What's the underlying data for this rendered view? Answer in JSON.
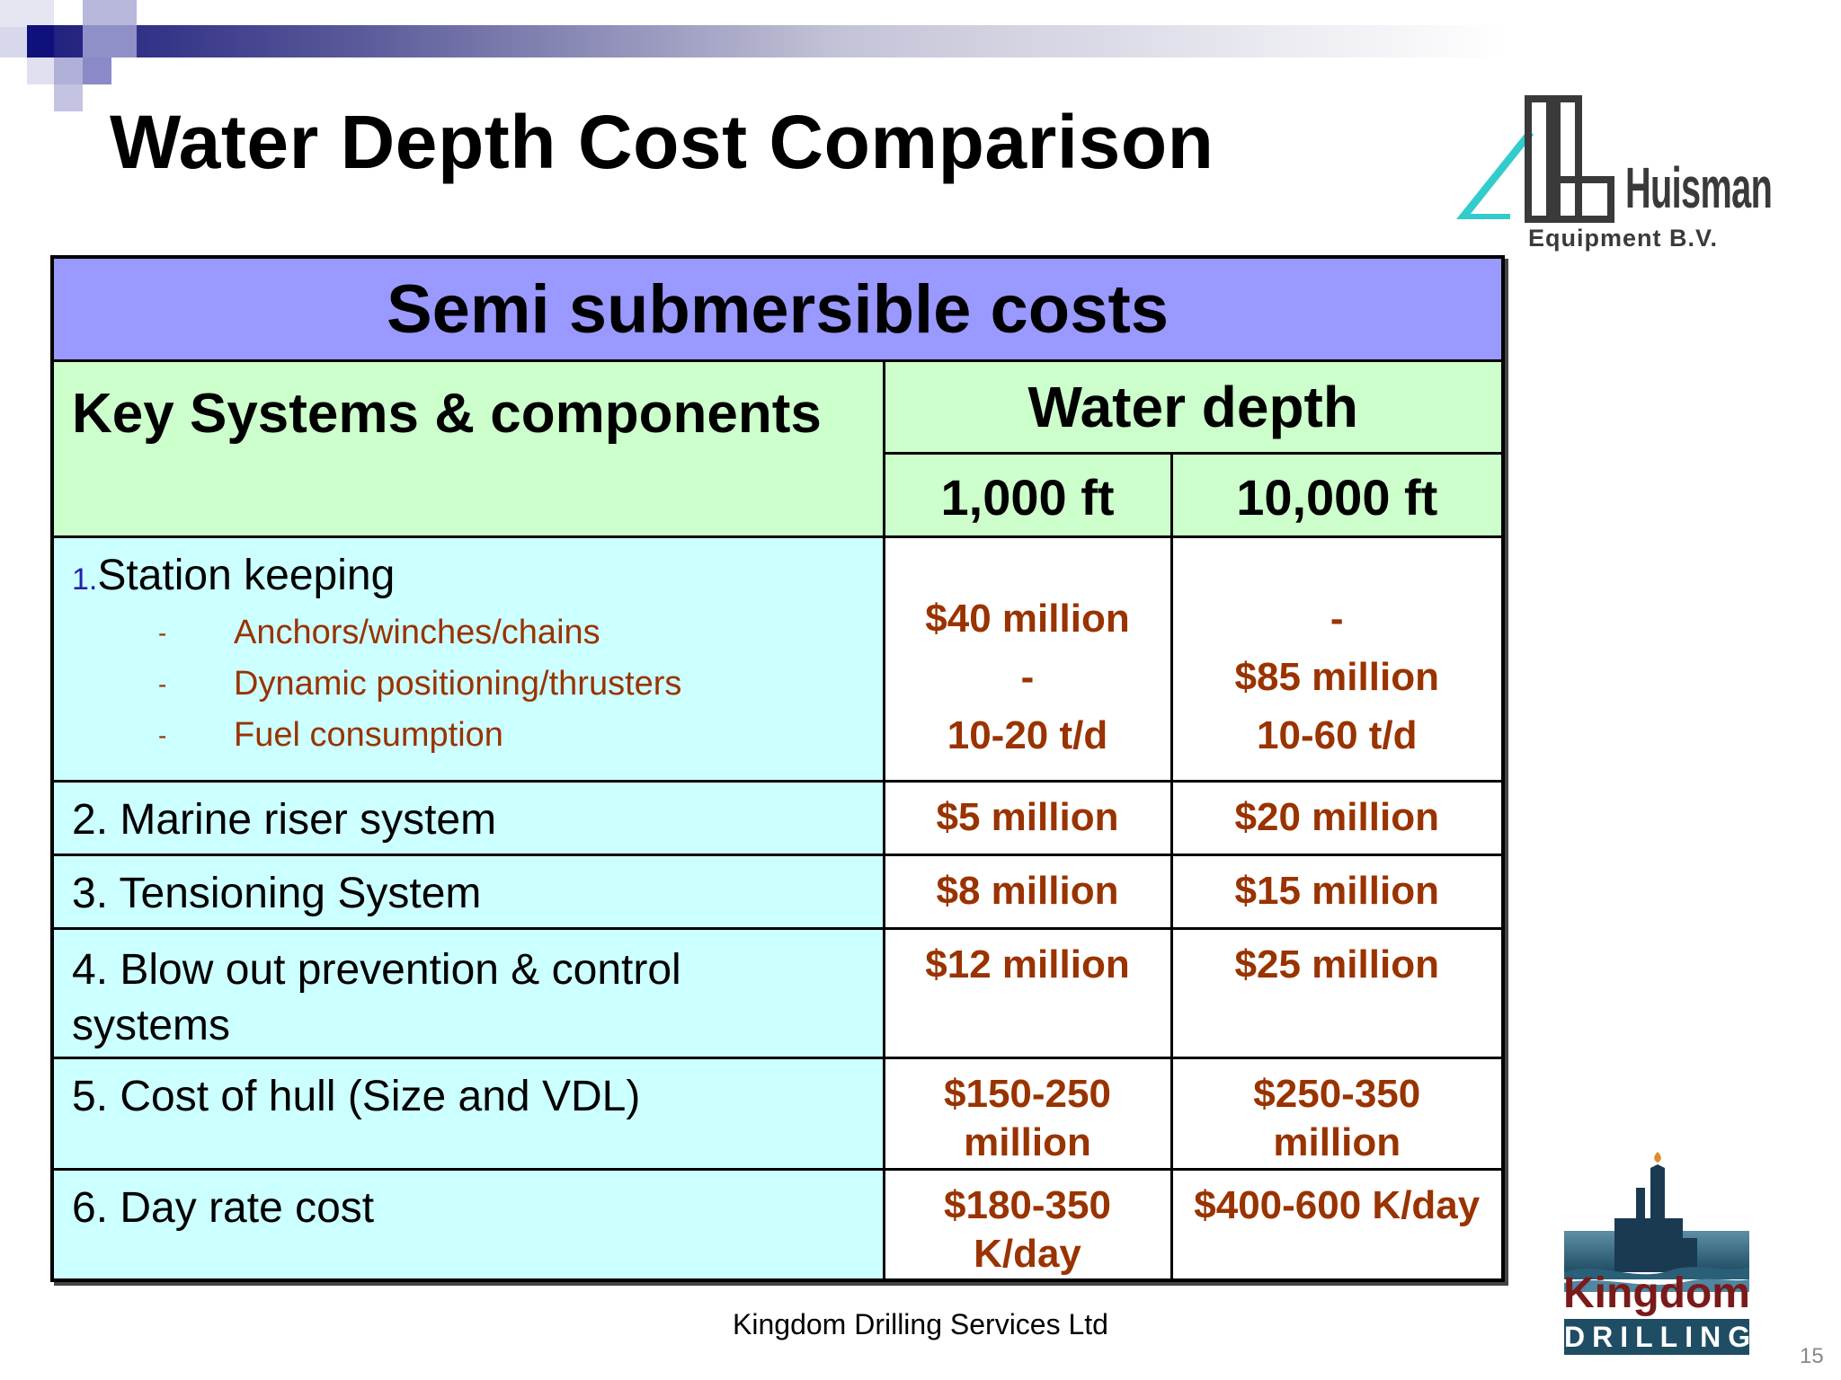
{
  "title": "Water Depth Cost Comparison",
  "logos": {
    "huisman": {
      "name": "Huisman",
      "subtitle": "Equipment B.V."
    },
    "kingdom": {
      "word": "Kingdom",
      "band": "DRILLING"
    }
  },
  "table": {
    "heading": "Semi submersible costs",
    "col_key": "Key Systems & components",
    "col_depth": "Water depth",
    "depth_1": "1,000 ft",
    "depth_2": "10,000 ft",
    "station": {
      "number": "1.",
      "label": "Station keeping",
      "dash": "-",
      "subitems": [
        "Anchors/winches/chains",
        "Dynamic positioning/thrusters",
        "Fuel consumption"
      ],
      "values_1000": [
        "$40 million",
        "-",
        "10-20 t/d"
      ],
      "values_10000": [
        "-",
        "$85 million",
        "10-60 t/d"
      ]
    },
    "rows": [
      {
        "label": "2. Marine riser system",
        "v1": "$5 million",
        "v2": "$20 million"
      },
      {
        "label": "3. Tensioning System",
        "v1": "$8 million",
        "v2": "$15 million"
      },
      {
        "label": "4. Blow out prevention & control systems",
        "v1": "$12 million",
        "v2": "$25 million"
      },
      {
        "label": "5. Cost of hull (Size and VDL)",
        "v1": "$150-250 million",
        "v2": "$250-350 million"
      },
      {
        "label": "6. Day rate cost",
        "v1": "$180-350 K/day",
        "v2": "$400-600 K/day"
      }
    ]
  },
  "footer": "Kingdom Drilling Services Ltd",
  "page_number": "15",
  "colors": {
    "header_purple": "#9999ff",
    "header_green": "#ccffcc",
    "body_cyan": "#ccffff",
    "value_brown": "#993300"
  }
}
